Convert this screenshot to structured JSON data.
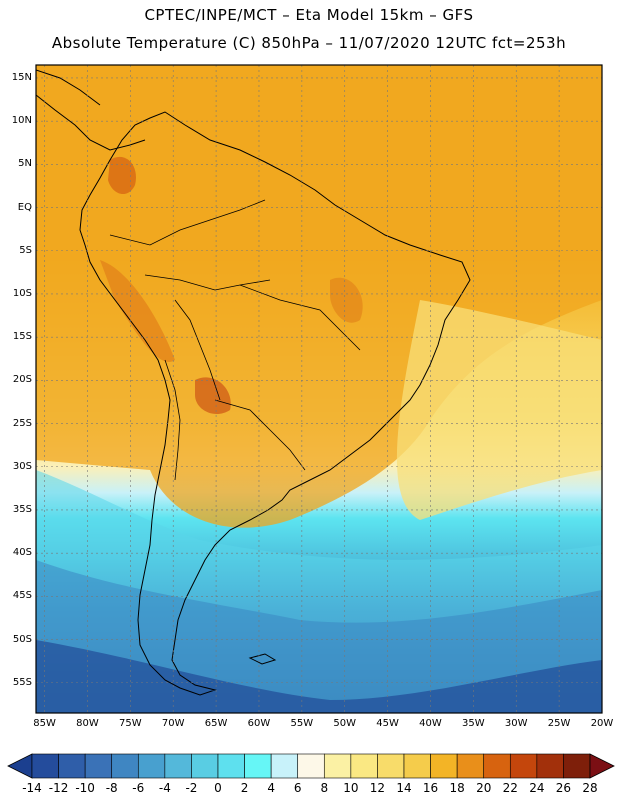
{
  "header": {
    "line1": "CPTEC/INPE/MCT –  Eta Model 15km – GFS",
    "line2": "Absolute Temperature (C) 850hPa – 11/07/2020 12UTC fct=253h"
  },
  "map": {
    "lat_labels": [
      "15N",
      "10N",
      "5N",
      "EQ",
      "5S",
      "10S",
      "15S",
      "20S",
      "25S",
      "30S",
      "35S",
      "40S",
      "45S",
      "50S",
      "55S"
    ],
    "lon_labels": [
      "85W",
      "80W",
      "75W",
      "70W",
      "65W",
      "60W",
      "55W",
      "50W",
      "45W",
      "40W",
      "35W",
      "30W",
      "25W",
      "20W"
    ],
    "lat_range": [
      16.5,
      -58.5
    ],
    "lon_range": [
      -86.0,
      -20.0
    ]
  },
  "colorbar": {
    "ticks": [
      "-14",
      "-12",
      "-10",
      "-8",
      "-6",
      "-4",
      "-2",
      "0",
      "2",
      "4",
      "6",
      "8",
      "10",
      "12",
      "14",
      "16",
      "18",
      "20",
      "22",
      "24",
      "26",
      "28"
    ],
    "colors": [
      "#1b3f8f",
      "#244c9c",
      "#2f5ea9",
      "#3a72b7",
      "#3f86c2",
      "#48a0cf",
      "#54b8da",
      "#59cde3",
      "#5ee0ee",
      "#66f6f6",
      "#c8f2fa",
      "#fdf8e8",
      "#fbf1a4",
      "#fae883",
      "#f8dc6a",
      "#f5cc4b",
      "#f3b426",
      "#e98f1a",
      "#d7630f",
      "#c4460c",
      "#a2300b",
      "#7e1f0a",
      "#7b0f14"
    ]
  }
}
